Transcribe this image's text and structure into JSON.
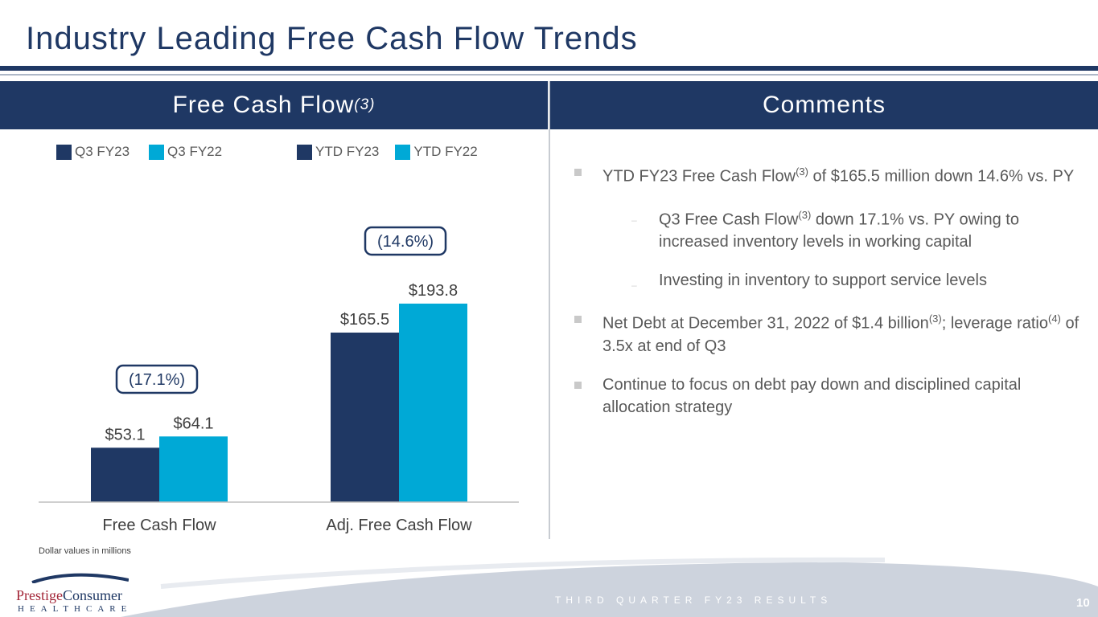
{
  "title": "Industry Leading Free Cash Flow Trends",
  "left_header": {
    "label": "Free Cash Flow",
    "sup": "(3)"
  },
  "right_header": "Comments",
  "colors": {
    "navy": "#1f3864",
    "cyan": "#00a9d6"
  },
  "chart_data": {
    "type": "bar",
    "categories": [
      "Free Cash Flow",
      "Adj. Free Cash Flow"
    ],
    "series": [
      {
        "name": "Q3 FY23",
        "category": "Free Cash Flow",
        "value": 53.1,
        "label": "$53.1",
        "color": "#1f3864"
      },
      {
        "name": "Q3 FY22",
        "category": "Free Cash Flow",
        "value": 64.1,
        "label": "$64.1",
        "color": "#00a9d6"
      },
      {
        "name": "YTD FY23",
        "category": "Adj. Free Cash Flow",
        "value": 165.5,
        "label": "$165.5",
        "color": "#1f3864"
      },
      {
        "name": "YTD FY22",
        "category": "Adj. Free Cash Flow",
        "value": 193.8,
        "label": "$193.8",
        "color": "#00a9d6"
      }
    ],
    "legend": [
      "Q3 FY23",
      "Q3 FY22",
      "YTD FY23",
      "YTD FY22"
    ],
    "annotations": [
      "(17.1%)",
      "(14.6%)"
    ],
    "ylim": [
      0,
      200
    ],
    "grid": false,
    "legend_placement": "top"
  },
  "comments": {
    "b1": {
      "pre": "YTD FY23 Free Cash Flow",
      "sup": "(3)",
      "post": " of $165.5 million down 14.6% vs. PY"
    },
    "s1": {
      "pre": "Q3 Free Cash Flow",
      "sup": "(3)",
      "post": " down 17.1% vs. PY owing to increased inventory levels in working capital"
    },
    "s2": "Investing in inventory to support service levels",
    "b2": {
      "pre": "Net Debt at December 31, 2022 of $1.4 billion",
      "sup": "(3)",
      "mid": "; leverage ratio",
      "sup2": "(4)",
      "post": " of 3.5x at end of Q3"
    },
    "b3": "Continue to focus on debt pay down and disciplined capital allocation strategy"
  },
  "note": "Dollar values in millions",
  "footer": {
    "text": "THIRD QUARTER FY23 RESULTS",
    "page": "10",
    "logo_top": "Prestige",
    "logo_top2": "Consumer",
    "logo_bottom": "HEALTHCARE"
  }
}
